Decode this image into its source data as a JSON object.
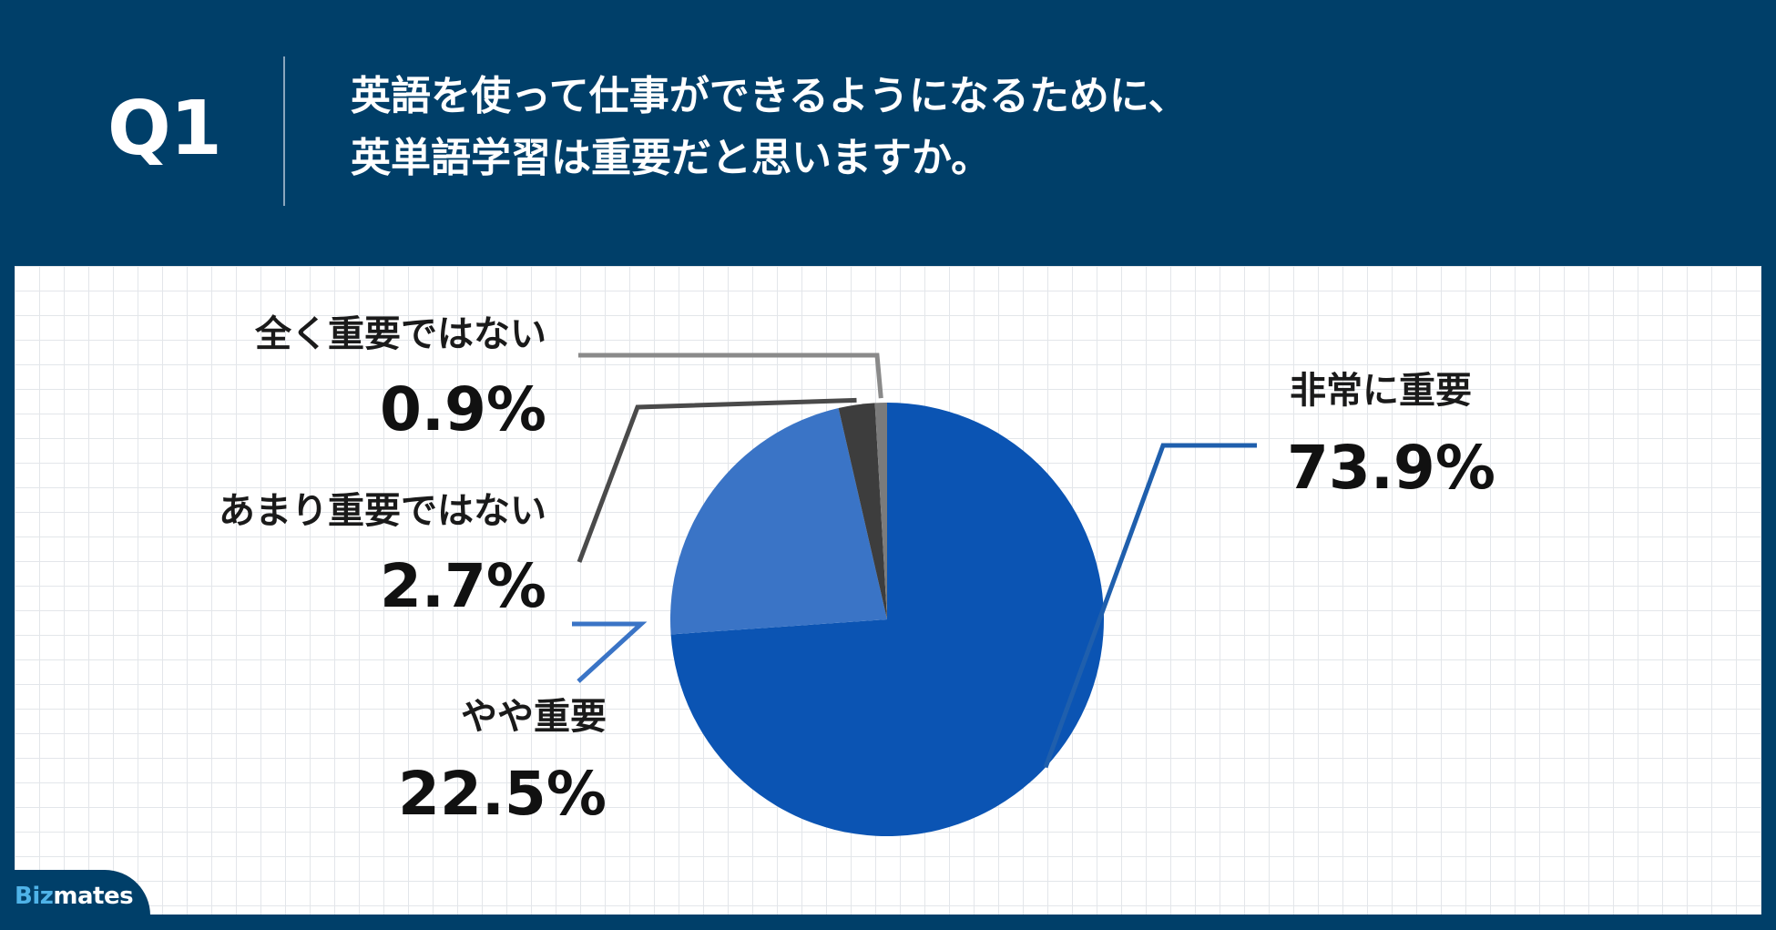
{
  "header": {
    "question_number": "Q1",
    "question_lines": [
      "英語を使って仕事ができるようになるために、",
      "英単語学習は重要だと思いますか。"
    ]
  },
  "brand": {
    "logo_prefix": "Biz",
    "logo_suffix": "mates"
  },
  "chart_data": {
    "type": "pie",
    "title": "",
    "start": "12 o'clock",
    "direction": "clockwise",
    "slices": [
      {
        "label": "非常に重要",
        "value": 73.9,
        "value_label": "73.9%",
        "color": "#0b54b3",
        "leader_color": "#1f5fad"
      },
      {
        "label": "やや重要",
        "value": 22.5,
        "value_label": "22.5%",
        "color": "#3a74c6",
        "leader_color": "#3a74c6"
      },
      {
        "label": "あまり重要ではない",
        "value": 2.7,
        "value_label": "2.7%",
        "color": "#3d3d3d",
        "leader_color": "#4a4a4a"
      },
      {
        "label": "全く重要ではない",
        "value": 0.9,
        "value_label": "0.9%",
        "color": "#7b7b7b",
        "leader_color": "#8a8a8a"
      }
    ]
  },
  "colors": {
    "header_bg": "#003f69",
    "panel_bg": "#ffffff",
    "grid_line": "#e3e6ea"
  }
}
